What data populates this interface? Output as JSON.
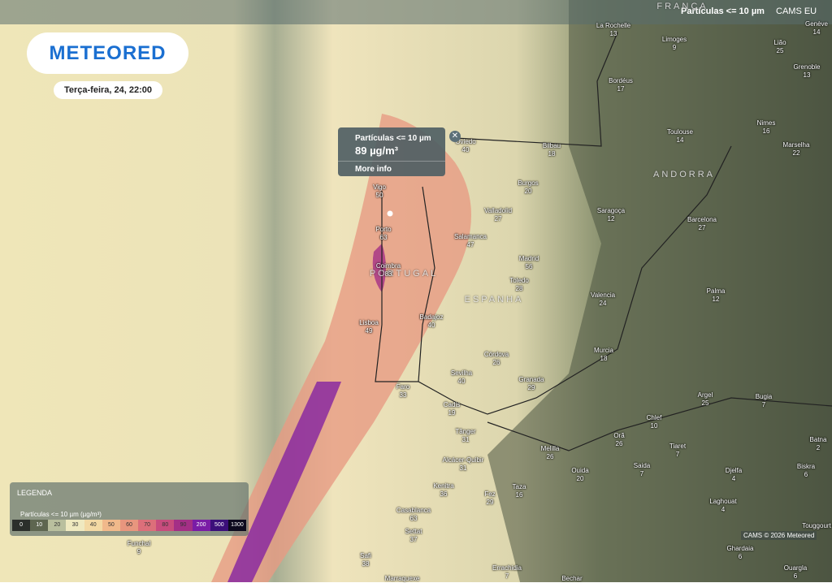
{
  "header": {
    "layer": "Partículas <= 10 µm",
    "model": "CAMS EU"
  },
  "logo": "METEORED",
  "date": "Terça-feira, 24, 22:00",
  "popup": {
    "title": "Partículas <= 10 µm",
    "value": "89 µg/m³",
    "link": "More info"
  },
  "regions": [
    "FRANÇA",
    "ANDORRA",
    "PORTUGAL",
    "ESPANHA"
  ],
  "cities": [
    {
      "name": "La Rochelle",
      "value": 13
    },
    {
      "name": "Limoges",
      "value": 9
    },
    {
      "name": "Genève",
      "value": 14
    },
    {
      "name": "Lião",
      "value": 25
    },
    {
      "name": "Grenoble",
      "value": 13
    },
    {
      "name": "Bordéus",
      "value": 17
    },
    {
      "name": "Toulouse",
      "value": 14
    },
    {
      "name": "Nimes",
      "value": 16
    },
    {
      "name": "Marselha",
      "value": 22
    },
    {
      "name": "Oviedo",
      "value": 40
    },
    {
      "name": "Bilbau",
      "value": 18
    },
    {
      "name": "Burgos",
      "value": 20
    },
    {
      "name": "Vigo",
      "value": 50
    },
    {
      "name": "Valladolid",
      "value": 27
    },
    {
      "name": "Saragoça",
      "value": 12
    },
    {
      "name": "Barcelona",
      "value": 27
    },
    {
      "name": "Porto",
      "value": 63
    },
    {
      "name": "Salamanca",
      "value": 47
    },
    {
      "name": "Madrid",
      "value": 56
    },
    {
      "name": "Coimbra",
      "value": 83
    },
    {
      "name": "Toledo",
      "value": 28
    },
    {
      "name": "Palma",
      "value": 12
    },
    {
      "name": "Valencia",
      "value": 24
    },
    {
      "name": "Badajoz",
      "value": 40
    },
    {
      "name": "Lisboa",
      "value": 49
    },
    {
      "name": "Murcia",
      "value": 18
    },
    {
      "name": "Córdova",
      "value": 26
    },
    {
      "name": "Sevilha",
      "value": 40
    },
    {
      "name": "Granada",
      "value": 29
    },
    {
      "name": "Faro",
      "value": 33
    },
    {
      "name": "Cadis",
      "value": 19
    },
    {
      "name": "Argel",
      "value": 25
    },
    {
      "name": "Bugia",
      "value": 7
    },
    {
      "name": "Chlef",
      "value": 10
    },
    {
      "name": "Tânger",
      "value": 31
    },
    {
      "name": "Orã",
      "value": 26
    },
    {
      "name": "Batna",
      "value": 2
    },
    {
      "name": "Melilla",
      "value": 26
    },
    {
      "name": "Tiaret",
      "value": 7
    },
    {
      "name": "Alcácer-Quibir",
      "value": 31
    },
    {
      "name": "Saida",
      "value": 7
    },
    {
      "name": "Biskra",
      "value": 6
    },
    {
      "name": "Ouida",
      "value": 20
    },
    {
      "name": "Djelfa",
      "value": 4
    },
    {
      "name": "Kenitra",
      "value": 36
    },
    {
      "name": "Fez",
      "value": 29
    },
    {
      "name": "Taza",
      "value": 16
    },
    {
      "name": "Laghouat",
      "value": 4
    },
    {
      "name": "Casablanca",
      "value": 63
    },
    {
      "name": "Touggourt"
    },
    {
      "name": "Settat",
      "value": 37
    },
    {
      "name": "Funchal",
      "value": 9
    },
    {
      "name": "Ghardaia",
      "value": 6
    },
    {
      "name": "Safi",
      "value": 38
    },
    {
      "name": "Errachidia",
      "value": 7
    },
    {
      "name": "Ouargla",
      "value": 6
    },
    {
      "name": "Bechar"
    },
    {
      "name": "Marraquexe"
    }
  ],
  "legend": {
    "title": "LEGENDA",
    "subtitle": "Partículas <= 10 µm (µg/m³)",
    "stops": [
      {
        "value": 0,
        "color": "#2b2f2b"
      },
      {
        "value": 10,
        "color": "#5e6650"
      },
      {
        "value": 20,
        "color": "#b9bf9e"
      },
      {
        "value": 30,
        "color": "#efe9c0"
      },
      {
        "value": 40,
        "color": "#f3d9a4"
      },
      {
        "value": 50,
        "color": "#f1b98b"
      },
      {
        "value": 60,
        "color": "#e8967e"
      },
      {
        "value": 70,
        "color": "#dc6f7a"
      },
      {
        "value": 80,
        "color": "#c84c7d"
      },
      {
        "value": 90,
        "color": "#a42f86"
      },
      {
        "value": 200,
        "color": "#7a1ca6"
      },
      {
        "value": 500,
        "color": "#3b0f7a"
      },
      {
        "value": 1300,
        "color": "#0d0a1e"
      }
    ]
  },
  "credit": "CAMS © 2026 Meteored"
}
